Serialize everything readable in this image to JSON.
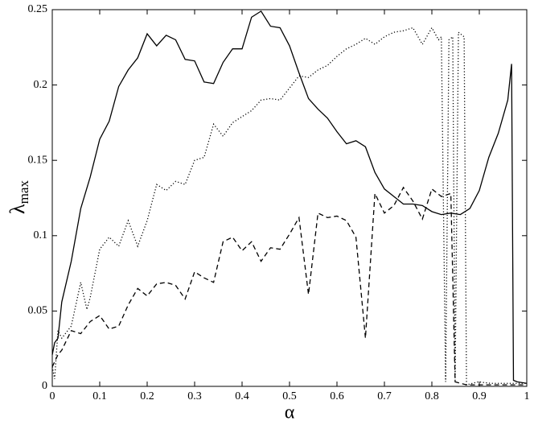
{
  "chart_data": {
    "type": "line",
    "xlabel": "α",
    "ylabel": "λ",
    "ylabel_sub": "max",
    "xlim": [
      0,
      1
    ],
    "xticks": [
      0,
      0.1,
      0.2,
      0.3,
      0.4,
      0.5,
      0.6,
      0.7,
      0.8,
      0.9,
      1
    ],
    "ylim": [
      0,
      0.25
    ],
    "yticks": [
      0,
      0.05,
      0.1,
      0.15,
      0.2,
      0.25
    ],
    "grid": false,
    "series": [
      {
        "color": "#000000",
        "dash": "solid",
        "x": [
          0,
          0.005,
          0.012,
          0.02,
          0.04,
          0.06,
          0.08,
          0.1,
          0.12,
          0.14,
          0.16,
          0.18,
          0.2,
          0.22,
          0.24,
          0.26,
          0.28,
          0.3,
          0.32,
          0.34,
          0.36,
          0.38,
          0.4,
          0.42,
          0.44,
          0.46,
          0.48,
          0.5,
          0.52,
          0.54,
          0.56,
          0.58,
          0.6,
          0.62,
          0.64,
          0.66,
          0.68,
          0.7,
          0.72,
          0.74,
          0.76,
          0.78,
          0.8,
          0.82,
          0.84,
          0.86,
          0.88,
          0.9,
          0.92,
          0.94,
          0.96,
          0.968,
          0.972,
          0.98,
          1
        ],
        "values": [
          0.021,
          0.029,
          0.032,
          0.056,
          0.083,
          0.118,
          0.139,
          0.164,
          0.176,
          0.199,
          0.21,
          0.218,
          0.234,
          0.226,
          0.233,
          0.23,
          0.217,
          0.216,
          0.202,
          0.201,
          0.215,
          0.224,
          0.224,
          0.245,
          0.249,
          0.239,
          0.238,
          0.226,
          0.208,
          0.191,
          0.184,
          0.178,
          0.169,
          0.161,
          0.163,
          0.159,
          0.142,
          0.131,
          0.126,
          0.121,
          0.121,
          0.12,
          0.116,
          0.114,
          0.115,
          0.114,
          0.118,
          0.13,
          0.152,
          0.168,
          0.19,
          0.214,
          0.004,
          0.003,
          0.002
        ]
      },
      {
        "color": "#000000",
        "dash": "dotted",
        "x": [
          0,
          0.005,
          0.012,
          0.02,
          0.04,
          0.06,
          0.073,
          0.08,
          0.1,
          0.12,
          0.14,
          0.16,
          0.18,
          0.2,
          0.22,
          0.24,
          0.26,
          0.28,
          0.3,
          0.32,
          0.34,
          0.36,
          0.38,
          0.4,
          0.42,
          0.44,
          0.46,
          0.48,
          0.5,
          0.52,
          0.54,
          0.56,
          0.58,
          0.6,
          0.62,
          0.64,
          0.66,
          0.68,
          0.7,
          0.72,
          0.74,
          0.76,
          0.78,
          0.8,
          0.814,
          0.82,
          0.829,
          0.836,
          0.844,
          0.849,
          0.856,
          0.868,
          0.873,
          0.898,
          0.924,
          1
        ],
        "values": [
          0.013,
          0.005,
          0.037,
          0.032,
          0.04,
          0.069,
          0.051,
          0.059,
          0.091,
          0.099,
          0.093,
          0.11,
          0.093,
          0.11,
          0.134,
          0.13,
          0.136,
          0.134,
          0.15,
          0.152,
          0.174,
          0.166,
          0.175,
          0.179,
          0.183,
          0.19,
          0.191,
          0.19,
          0.198,
          0.206,
          0.205,
          0.21,
          0.213,
          0.219,
          0.224,
          0.227,
          0.231,
          0.227,
          0.232,
          0.235,
          0.236,
          0.238,
          0.227,
          0.238,
          0.23,
          0.232,
          0.003,
          0.23,
          0.232,
          0.003,
          0.235,
          0.232,
          0.001,
          0.003,
          0.002,
          0.002
        ]
      },
      {
        "color": "#000000",
        "dash": "dashed",
        "x": [
          0,
          0.012,
          0.02,
          0.04,
          0.06,
          0.08,
          0.1,
          0.12,
          0.14,
          0.16,
          0.18,
          0.2,
          0.22,
          0.24,
          0.26,
          0.28,
          0.3,
          0.32,
          0.34,
          0.36,
          0.38,
          0.4,
          0.42,
          0.44,
          0.46,
          0.48,
          0.5,
          0.52,
          0.54,
          0.56,
          0.58,
          0.6,
          0.62,
          0.64,
          0.66,
          0.68,
          0.7,
          0.72,
          0.74,
          0.76,
          0.78,
          0.8,
          0.82,
          0.84,
          0.849,
          0.873,
          1
        ],
        "values": [
          0.013,
          0.021,
          0.024,
          0.037,
          0.035,
          0.043,
          0.047,
          0.038,
          0.04,
          0.054,
          0.065,
          0.06,
          0.068,
          0.069,
          0.067,
          0.058,
          0.076,
          0.072,
          0.069,
          0.096,
          0.099,
          0.09,
          0.096,
          0.083,
          0.092,
          0.091,
          0.101,
          0.112,
          0.061,
          0.115,
          0.112,
          0.113,
          0.11,
          0.099,
          0.032,
          0.128,
          0.115,
          0.12,
          0.132,
          0.123,
          0.111,
          0.131,
          0.126,
          0.128,
          0.003,
          0.001,
          0.001
        ]
      }
    ]
  }
}
